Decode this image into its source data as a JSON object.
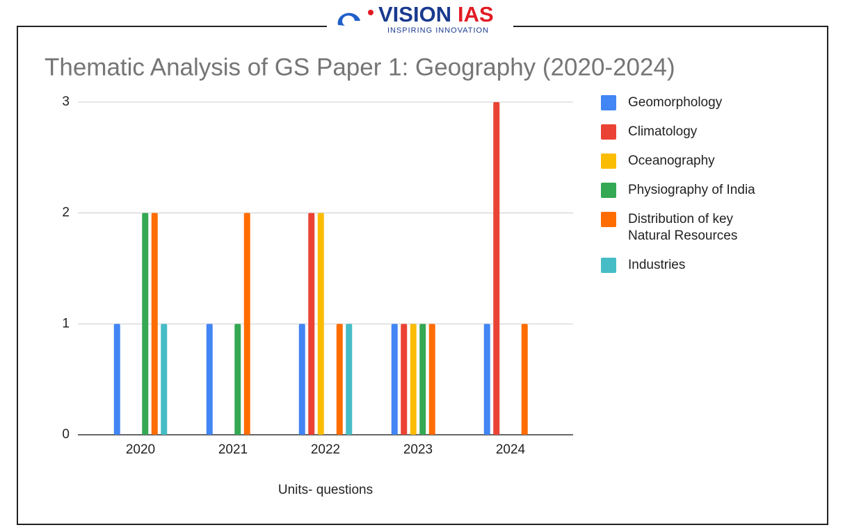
{
  "logo": {
    "text_1": "VISION",
    "text_2": "IAS",
    "tagline": "INSPIRING INNOVATION"
  },
  "chart_data": {
    "type": "bar",
    "title": "Thematic Analysis of GS Paper 1: Geography (2020-2024)",
    "x_label": "Units- questions",
    "categories": [
      "2020",
      "2021",
      "2022",
      "2023",
      "2024"
    ],
    "series": [
      {
        "name": "Geomorphology",
        "color": "#4285f4",
        "values": [
          1,
          1,
          1,
          1,
          1
        ]
      },
      {
        "name": "Climatology",
        "color": "#ea4335",
        "values": [
          0,
          0,
          2,
          1,
          3
        ]
      },
      {
        "name": "Oceanography",
        "color": "#fbbc04",
        "values": [
          0,
          0,
          2,
          1,
          0
        ]
      },
      {
        "name": "Physiography of India",
        "color": "#34a853",
        "values": [
          2,
          1,
          0,
          1,
          0
        ]
      },
      {
        "name": "Distribution of key Natural Resources",
        "color": "#ff6d01",
        "values": [
          2,
          2,
          1,
          1,
          1
        ]
      },
      {
        "name": "Industries",
        "color": "#46bdc6",
        "values": [
          1,
          0,
          1,
          0,
          0
        ]
      }
    ],
    "ylim": [
      0,
      3
    ],
    "yticks": [
      0,
      1,
      2,
      3
    ],
    "grid": true,
    "legend": "right"
  }
}
